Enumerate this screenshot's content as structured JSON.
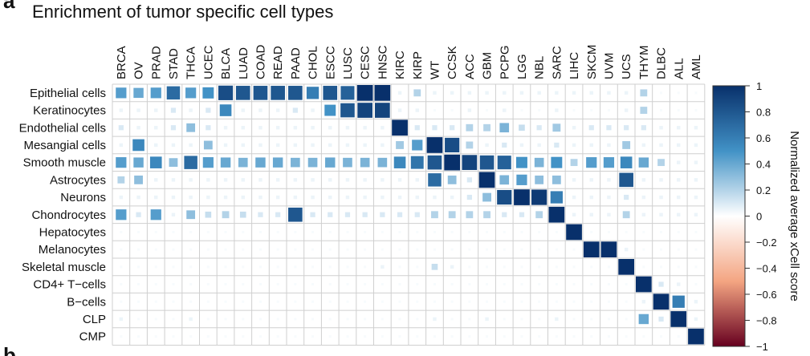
{
  "panel_letters": {
    "top": "a",
    "bottom": "b"
  },
  "chart_data": {
    "type": "heatmap",
    "title": "Enrichment of tumor specific cell types",
    "columns": [
      "BRCA",
      "OV",
      "PRAD",
      "STAD",
      "THCA",
      "UCEC",
      "BLCA",
      "LUAD",
      "COAD",
      "READ",
      "PAAD",
      "CHOL",
      "ESCC",
      "LUSC",
      "CESC",
      "HNSC",
      "KIRC",
      "KIRP",
      "WT",
      "CCSK",
      "ACC",
      "GBM",
      "PCPG",
      "LGG",
      "NBL",
      "SARC",
      "LIHC",
      "SKCM",
      "UVM",
      "UCS",
      "THYM",
      "DLBC",
      "ALL",
      "AML"
    ],
    "rows": [
      "Epithelial cells",
      "Keratinocytes",
      "Endothelial cells",
      "Mesangial cells",
      "Smooth muscle",
      "Astrocytes",
      "Neurons",
      "Chondrocytes",
      "Hepatocytes",
      "Melanocytes",
      "Skeletal muscle",
      "CD4+ T−cells",
      "B−cells",
      "CLP",
      "CMP"
    ],
    "values": [
      [
        0.45,
        0.4,
        0.45,
        0.7,
        0.45,
        0.5,
        0.85,
        0.8,
        0.8,
        0.8,
        0.8,
        0.6,
        0.8,
        0.75,
        1.0,
        1.0,
        0.05,
        0.2,
        0.05,
        0.05,
        0.05,
        0.05,
        0.05,
        0.05,
        0.05,
        0.05,
        0.05,
        0.05,
        0.05,
        0.05,
        0.2,
        0.02,
        0.02,
        0.02
      ],
      [
        0.05,
        0.05,
        0.05,
        0.1,
        0.05,
        0.1,
        0.55,
        0.05,
        0.05,
        0.05,
        0.1,
        0.05,
        0.5,
        0.8,
        0.9,
        0.9,
        0.05,
        0.05,
        0.02,
        0.02,
        0.05,
        0.02,
        0.05,
        0.02,
        0.02,
        0.05,
        0.02,
        0.02,
        0.02,
        0.05,
        0.2,
        0.02,
        0.02,
        0.02
      ],
      [
        0.1,
        0.05,
        0.05,
        0.1,
        0.3,
        0.1,
        0.05,
        0.05,
        0.05,
        0.05,
        0.05,
        0.05,
        0.05,
        0.05,
        0.05,
        0.05,
        1.0,
        0.1,
        0.1,
        0.1,
        0.2,
        0.2,
        0.35,
        0.15,
        0.1,
        0.25,
        0.05,
        0.1,
        0.1,
        0.1,
        0.1,
        0.05,
        0.05,
        0.05
      ],
      [
        0.05,
        0.55,
        0.05,
        0.05,
        0.05,
        0.3,
        0.05,
        0.05,
        0.05,
        0.05,
        0.05,
        0.05,
        0.05,
        0.05,
        0.05,
        0.05,
        0.25,
        0.45,
        1.0,
        0.85,
        0.2,
        0.05,
        0.1,
        0.05,
        0.05,
        0.1,
        0.05,
        0.05,
        0.05,
        0.25,
        0.05,
        0.05,
        0.05,
        0.05
      ],
      [
        0.45,
        0.4,
        0.55,
        0.3,
        0.7,
        0.45,
        0.4,
        0.35,
        0.4,
        0.4,
        0.35,
        0.35,
        0.4,
        0.35,
        0.35,
        0.35,
        0.55,
        0.65,
        0.8,
        1.0,
        0.9,
        0.8,
        0.75,
        0.5,
        0.35,
        0.5,
        0.2,
        0.45,
        0.45,
        0.55,
        0.4,
        0.2,
        0.05,
        0.05
      ],
      [
        0.2,
        0.3,
        0.05,
        0.05,
        0.05,
        0.05,
        0.05,
        0.05,
        0.05,
        0.05,
        0.05,
        0.05,
        0.05,
        0.05,
        0.05,
        0.05,
        0.05,
        0.05,
        0.7,
        0.3,
        0.1,
        1.0,
        0.35,
        0.45,
        0.3,
        0.3,
        0.05,
        0.05,
        0.05,
        0.8,
        0.05,
        0.05,
        0.05,
        0.05
      ],
      [
        0.05,
        0.05,
        0.05,
        0.05,
        0.05,
        0.05,
        0.05,
        0.05,
        0.05,
        0.05,
        0.05,
        0.05,
        0.05,
        0.05,
        0.05,
        0.05,
        0.05,
        0.05,
        0.05,
        0.05,
        0.1,
        0.3,
        0.85,
        1.0,
        0.95,
        0.6,
        0.05,
        0.05,
        0.05,
        0.1,
        0.05,
        0.05,
        0.05,
        0.05
      ],
      [
        0.45,
        0.1,
        0.45,
        0.05,
        0.3,
        0.15,
        0.2,
        0.15,
        0.1,
        0.1,
        0.8,
        0.1,
        0.1,
        0.1,
        0.1,
        0.1,
        0.1,
        0.1,
        0.2,
        0.2,
        0.2,
        0.2,
        0.1,
        0.1,
        0.2,
        1.0,
        0.05,
        0.05,
        0.05,
        0.2,
        0.05,
        0.05,
        0.05,
        0.05
      ],
      [
        0.02,
        0.02,
        0.02,
        0.02,
        0.02,
        0.02,
        0.02,
        0.02,
        0.02,
        0.02,
        0.02,
        0.02,
        0.02,
        0.02,
        0.02,
        0.02,
        0.02,
        0.02,
        0.02,
        0.02,
        0.02,
        0.02,
        0.02,
        0.02,
        0.02,
        0.02,
        1.0,
        0.02,
        0.02,
        0.02,
        0.02,
        0.02,
        0.02,
        0.02
      ],
      [
        0.02,
        0.02,
        0.02,
        0.02,
        0.02,
        0.02,
        0.02,
        0.02,
        0.02,
        0.02,
        0.02,
        0.02,
        0.02,
        0.02,
        0.02,
        0.02,
        0.02,
        0.02,
        0.02,
        0.02,
        0.02,
        0.02,
        0.02,
        0.02,
        0.02,
        0.02,
        0.02,
        1.0,
        1.0,
        0.05,
        0.02,
        0.02,
        0.02,
        0.02
      ],
      [
        0.02,
        0.02,
        0.02,
        0.02,
        0.02,
        0.02,
        0.02,
        0.02,
        0.02,
        0.02,
        0.02,
        0.02,
        0.02,
        0.02,
        0.02,
        0.05,
        0.02,
        0.02,
        0.15,
        0.05,
        0.02,
        0.02,
        0.02,
        0.02,
        0.02,
        0.02,
        0.02,
        0.02,
        0.02,
        1.0,
        0.02,
        0.02,
        0.02,
        0.02
      ],
      [
        0.02,
        0.02,
        0.02,
        0.02,
        0.02,
        0.02,
        0.02,
        0.02,
        0.02,
        0.02,
        0.02,
        0.02,
        0.02,
        0.02,
        0.02,
        0.02,
        0.02,
        0.02,
        0.02,
        0.02,
        0.02,
        0.02,
        0.02,
        0.02,
        0.02,
        0.02,
        0.02,
        0.02,
        0.02,
        0.02,
        1.0,
        0.1,
        0.05,
        0.02
      ],
      [
        0.02,
        0.02,
        0.02,
        0.02,
        0.02,
        0.02,
        0.02,
        0.02,
        0.02,
        0.02,
        0.02,
        0.02,
        0.02,
        0.02,
        0.02,
        0.02,
        0.02,
        0.02,
        0.02,
        0.02,
        0.02,
        0.02,
        0.02,
        0.02,
        0.02,
        0.02,
        0.02,
        0.02,
        0.02,
        0.02,
        0.05,
        1.0,
        0.6,
        0.05
      ],
      [
        0.05,
        0.02,
        0.02,
        0.02,
        0.05,
        0.02,
        0.02,
        0.02,
        0.02,
        0.02,
        0.02,
        0.02,
        0.02,
        0.02,
        0.02,
        0.02,
        0.02,
        0.02,
        0.05,
        0.02,
        0.02,
        0.05,
        0.02,
        0.02,
        0.02,
        0.05,
        0.02,
        0.02,
        0.02,
        0.02,
        0.4,
        0.1,
        1.0,
        0.05
      ],
      [
        0.02,
        0.02,
        0.02,
        0.02,
        0.02,
        0.02,
        0.02,
        0.02,
        0.02,
        0.02,
        0.02,
        0.02,
        0.02,
        0.02,
        0.02,
        0.02,
        0.02,
        0.02,
        0.02,
        0.02,
        0.02,
        0.02,
        0.02,
        0.02,
        0.02,
        0.02,
        0.02,
        0.02,
        0.02,
        0.02,
        0.02,
        0.02,
        0.02,
        1.0
      ]
    ],
    "colorbar": {
      "label": "Normalized average xCell score",
      "range": [
        -1,
        1
      ],
      "ticks": [
        "1",
        "0.8",
        "0.6",
        "0.4",
        "0.2",
        "0",
        "−0.2",
        "−0.4",
        "−0.6",
        "−0.8",
        "−1"
      ],
      "colors": {
        "pos_high": "#08306b",
        "pos_mid": "#4292c6",
        "zero": "#ffffff",
        "neg_mid": "#f4a582",
        "neg_high": "#67001f"
      }
    },
    "grid": true
  }
}
